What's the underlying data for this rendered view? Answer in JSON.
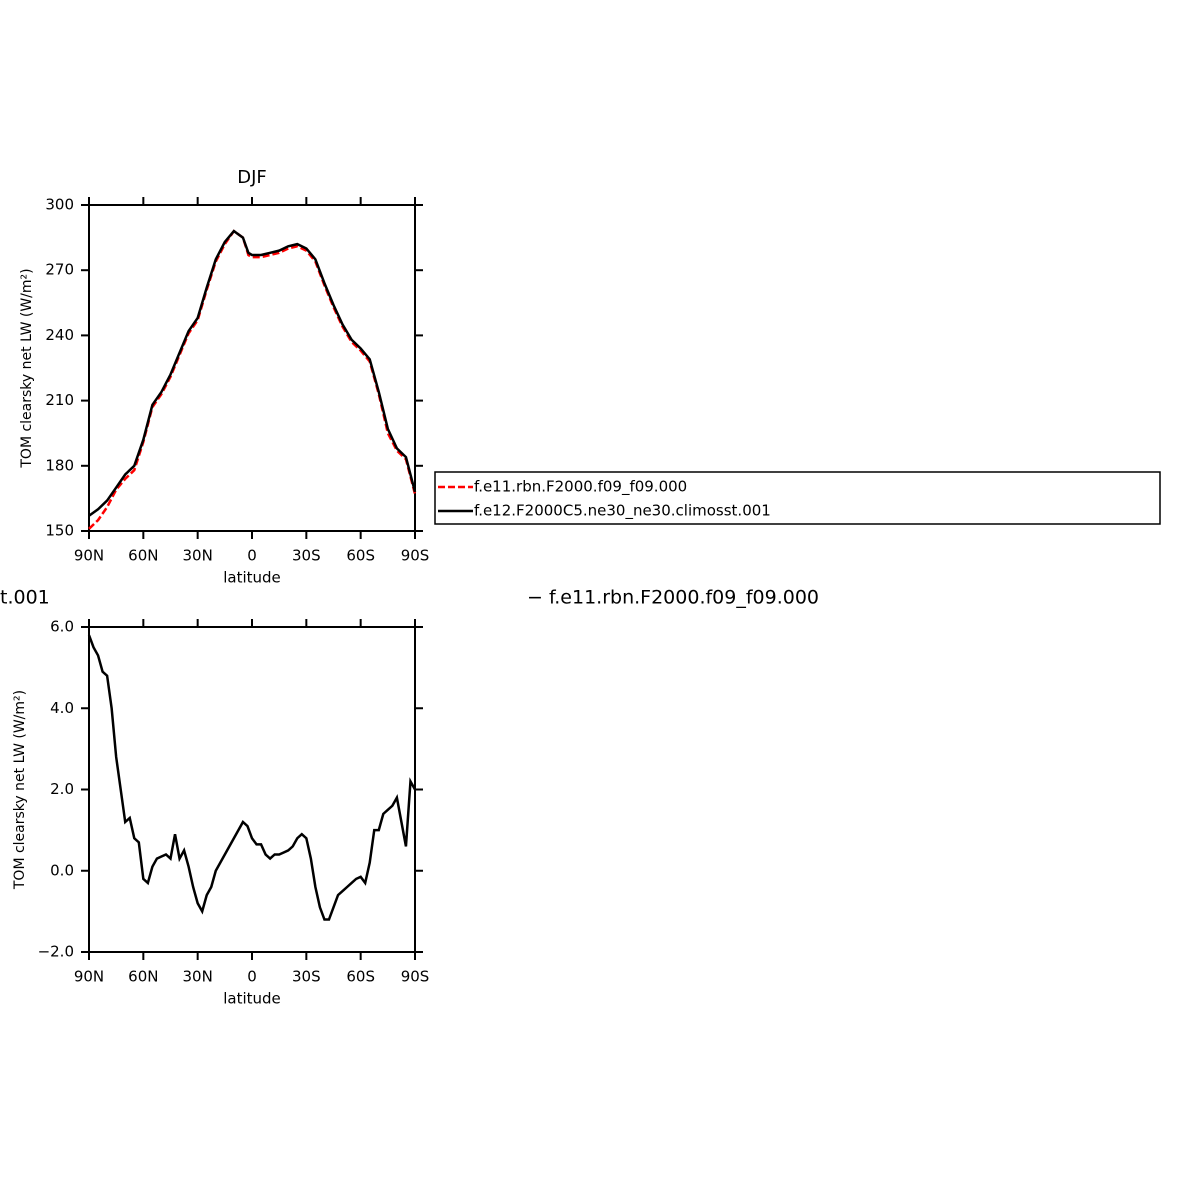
{
  "chart_data": [
    {
      "type": "line",
      "title": "DJF",
      "xlabel": "latitude",
      "ylabel": "TOM clearsky net LW (W/m²)",
      "x": [
        90,
        85,
        80,
        75,
        70,
        65,
        60,
        55,
        50,
        45,
        40,
        35,
        30,
        25,
        20,
        15,
        10,
        5,
        2,
        0,
        -5,
        -10,
        -15,
        -20,
        -25,
        -30,
        -35,
        -40,
        -45,
        -50,
        -55,
        -60,
        -65,
        -70,
        -75,
        -80,
        -85,
        -90
      ],
      "series": [
        {
          "name": "f.e11.rbn.F2000.f09_f09.000",
          "color": "#ff0000",
          "dashed": true,
          "values": [
            151,
            155,
            161,
            169,
            174,
            178,
            191,
            207,
            213,
            221,
            231,
            241,
            247,
            261,
            274,
            282,
            288,
            285,
            277,
            276,
            276,
            277,
            278,
            280,
            281,
            279,
            274,
            263,
            253,
            244,
            237,
            233,
            228,
            213,
            195,
            187,
            183,
            167
          ]
        },
        {
          "name": "f.e12.F2000C5.ne30_ne30.climosst.001",
          "color": "#000000",
          "dashed": false,
          "values": [
            157,
            160,
            164,
            170,
            176,
            180,
            192,
            208,
            214,
            222,
            232,
            242,
            248,
            262,
            275,
            283,
            288,
            285,
            278,
            277,
            277,
            278,
            279,
            281,
            282,
            280,
            275,
            264,
            254,
            245,
            238,
            234,
            229,
            214,
            197,
            188,
            184,
            168
          ]
        }
      ],
      "xlim": [
        90,
        -90
      ],
      "xticks": [
        {
          "value": 90,
          "label": "90N"
        },
        {
          "value": 60,
          "label": "60N"
        },
        {
          "value": 30,
          "label": "30N"
        },
        0,
        {
          "value": -30,
          "label": "30S"
        },
        {
          "value": -60,
          "label": "60S"
        },
        {
          "value": -90,
          "label": "90S"
        }
      ],
      "ylim": [
        150,
        300
      ],
      "yticks": [
        150,
        180,
        210,
        240,
        270,
        300
      ],
      "legend": "right"
    },
    {
      "type": "line",
      "xlabel": "latitude",
      "ylabel": "TOM clearsky net LW (W/m²)",
      "annotations": [
        "t.001",
        "− f.e11.rbn.F2000.f09_f09.000"
      ],
      "x": [
        90,
        87.5,
        85,
        82.5,
        80,
        77.5,
        75,
        72.5,
        70,
        67.5,
        65,
        62.5,
        60,
        57.5,
        55,
        52.5,
        50,
        47.5,
        45,
        42.5,
        40,
        37.5,
        35,
        32.5,
        30,
        27.5,
        25,
        22.5,
        20,
        17.5,
        15,
        12.5,
        10,
        7.5,
        5,
        2.5,
        0,
        -2.5,
        -5,
        -7.5,
        -10,
        -12.5,
        -15,
        -17.5,
        -20,
        -22.5,
        -25,
        -27.5,
        -30,
        -32.5,
        -35,
        -37.5,
        -40,
        -42.5,
        -45,
        -47.5,
        -50,
        -52.5,
        -55,
        -57.5,
        -60,
        -62.5,
        -65,
        -67.5,
        -70,
        -72.5,
        -75,
        -77.5,
        -80,
        -82.5,
        -85,
        -87.5,
        -90
      ],
      "series": [
        {
          "color": "#000000",
          "dashed": false,
          "values": [
            5.8,
            5.5,
            5.3,
            4.9,
            4.8,
            4.0,
            2.8,
            2.0,
            1.2,
            1.3,
            0.8,
            0.7,
            -0.2,
            -0.3,
            0.1,
            0.3,
            0.35,
            0.4,
            0.3,
            0.9,
            0.3,
            0.5,
            0.1,
            -0.4,
            -0.8,
            -1.0,
            -0.6,
            -0.4,
            0.0,
            0.2,
            0.4,
            0.6,
            0.8,
            1.0,
            1.2,
            1.1,
            0.8,
            0.65,
            0.65,
            0.4,
            0.3,
            0.4,
            0.4,
            0.45,
            0.5,
            0.6,
            0.8,
            0.9,
            0.8,
            0.3,
            -0.4,
            -0.9,
            -1.2,
            -1.2,
            -0.9,
            -0.6,
            -0.5,
            -0.4,
            -0.3,
            -0.2,
            -0.15,
            -0.3,
            0.2,
            1.0,
            1.0,
            1.4,
            1.5,
            1.6,
            1.8,
            1.2,
            0.6,
            2.2,
            2.0
          ]
        }
      ],
      "xlim": [
        90,
        -90
      ],
      "xticks": [
        {
          "value": 90,
          "label": "90N"
        },
        {
          "value": 60,
          "label": "60N"
        },
        {
          "value": 30,
          "label": "30N"
        },
        0,
        {
          "value": -30,
          "label": "30S"
        },
        {
          "value": -60,
          "label": "60S"
        },
        {
          "value": -90,
          "label": "90S"
        }
      ],
      "ylim": [
        -2,
        6
      ],
      "yticks": [
        {
          "value": -2,
          "label": "−2.0"
        },
        {
          "value": 0,
          "label": "0.0"
        },
        {
          "value": 2,
          "label": "2.0"
        },
        {
          "value": 4,
          "label": "4.0"
        },
        {
          "value": 6,
          "label": "6.0"
        }
      ]
    }
  ]
}
